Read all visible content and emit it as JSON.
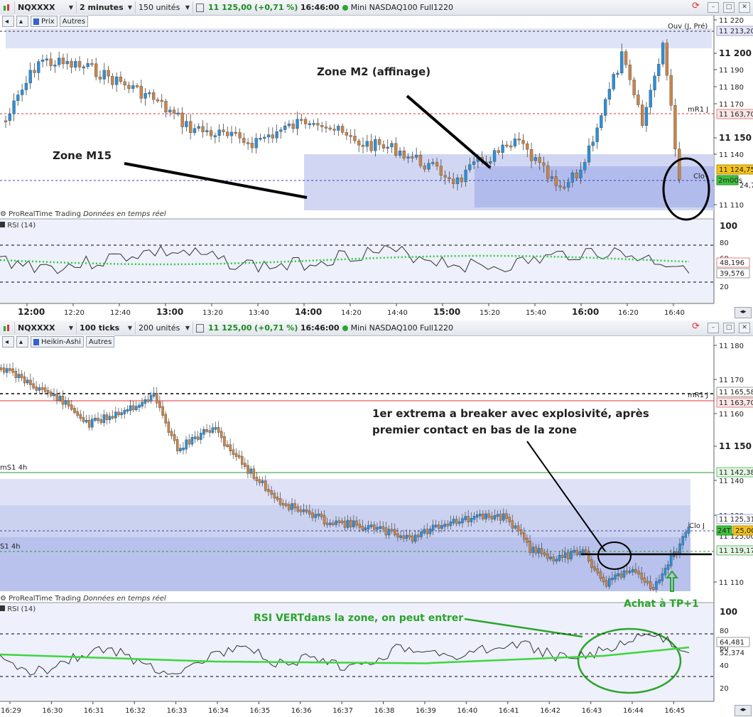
{
  "panel1": {
    "toolbar": {
      "symbol": "NQXXXX",
      "timeframe": "2 minutes",
      "units": "150 unités",
      "price": "11 125,00",
      "change": "(+0,71 %)",
      "time": "16:46:00",
      "instrument": "Mini NASDAQ100 Full1220"
    },
    "subbar": {
      "chart_type": "Prix",
      "others": "Autres"
    },
    "source": "ProRealTime Trading",
    "source_note": "Données en temps réel",
    "rsi_title": "RSI (14)",
    "annotations": {
      "zone_m2": "Zone M2 (affinage)",
      "zone_m15": "Zone M15"
    },
    "price_axis": [
      "11 220",
      "11 200",
      "11 190",
      "11 180",
      "11 170",
      "11 150",
      "11 140",
      "11 110"
    ],
    "price_tags": {
      "ouv": "Ouv (J, Pré)",
      "ouv_val": "11 213,20",
      "mr1": "mR1 J",
      "mr1_val": "11 163,70",
      "last": "11 124,75",
      "timer": "2m00s",
      "clo": "Clo",
      "clo_val": "11 124,75"
    },
    "rsi_axis": [
      "100",
      "80",
      "60",
      "20"
    ],
    "rsi_values": {
      "v1": "48,196",
      "v2": "39,576"
    },
    "time_axis": [
      {
        "t": "12:00",
        "bold": true
      },
      {
        "t": "12:20",
        "bold": false
      },
      {
        "t": "12:40",
        "bold": false
      },
      {
        "t": "13:00",
        "bold": true
      },
      {
        "t": "13:20",
        "bold": false
      },
      {
        "t": "13:40",
        "bold": false
      },
      {
        "t": "14:00",
        "bold": true
      },
      {
        "t": "14:20",
        "bold": false
      },
      {
        "t": "14:40",
        "bold": false
      },
      {
        "t": "15:00",
        "bold": true
      },
      {
        "t": "15:20",
        "bold": false
      },
      {
        "t": "15:40",
        "bold": false
      },
      {
        "t": "16:00",
        "bold": true
      },
      {
        "t": "16:20",
        "bold": false
      },
      {
        "t": "16:40",
        "bold": false
      }
    ]
  },
  "panel2": {
    "toolbar": {
      "symbol": "NQXXXX",
      "timeframe": "100 ticks",
      "units": "200 unités",
      "price": "11 125,00",
      "change": "(+0,71 %)",
      "time": "16:46:00",
      "instrument": "Mini NASDAQ100 Full1220"
    },
    "subbar": {
      "chart_type": "Heikin-Ashi",
      "others": "Autres"
    },
    "source": "ProRealTime Trading",
    "source_note": "Données en temps réel",
    "rsi_title": "RSI (14)",
    "annotations": {
      "extrema_line1": "1er extrema a breaker avec explosivité, après",
      "extrema_line2": "premier contact en bas de la zone",
      "achat": "Achat à TP+1",
      "rsi_note": "RSI VERTdans la zone, on peut entrer"
    },
    "price_axis": [
      "11 180",
      "11 170",
      "11 160",
      "11 150",
      "11 140",
      "11 130",
      "11 110"
    ],
    "price_tags": {
      "mr1": "mR1 J",
      "mr1_top": "11 165,58",
      "mr1_val": "11 163,70",
      "ms1": "mS1 4h",
      "ms1_val": "11 142,38",
      "clo": "Clo J",
      "clo_val": "11 125,31",
      "clo_sub": "11 125,00",
      "ticks": "24T",
      "last": "25,00",
      "s1": "S1 4h",
      "s1_val": "11 119,17"
    },
    "rsi_axis": [
      "100",
      "80",
      "60",
      "40",
      "20"
    ],
    "rsi_values": {
      "v1": "64,481",
      "v2": "52,374"
    },
    "time_axis": [
      "16:29",
      "16:30",
      "16:31",
      "16:32",
      "16:33",
      "16:34",
      "16:35",
      "16:36",
      "16:37",
      "16:38",
      "16:39",
      "16:40",
      "16:41",
      "16:42",
      "16:43",
      "16:44",
      "16:45"
    ]
  },
  "colors": {
    "up": "#2d8fd6",
    "down": "#c8844a",
    "zone": "#c9d0f0",
    "zone_inner": "#aab5ea",
    "red_line": "#e03030",
    "green_line": "#2a9a2a",
    "annot_green": "#2aa52a"
  }
}
